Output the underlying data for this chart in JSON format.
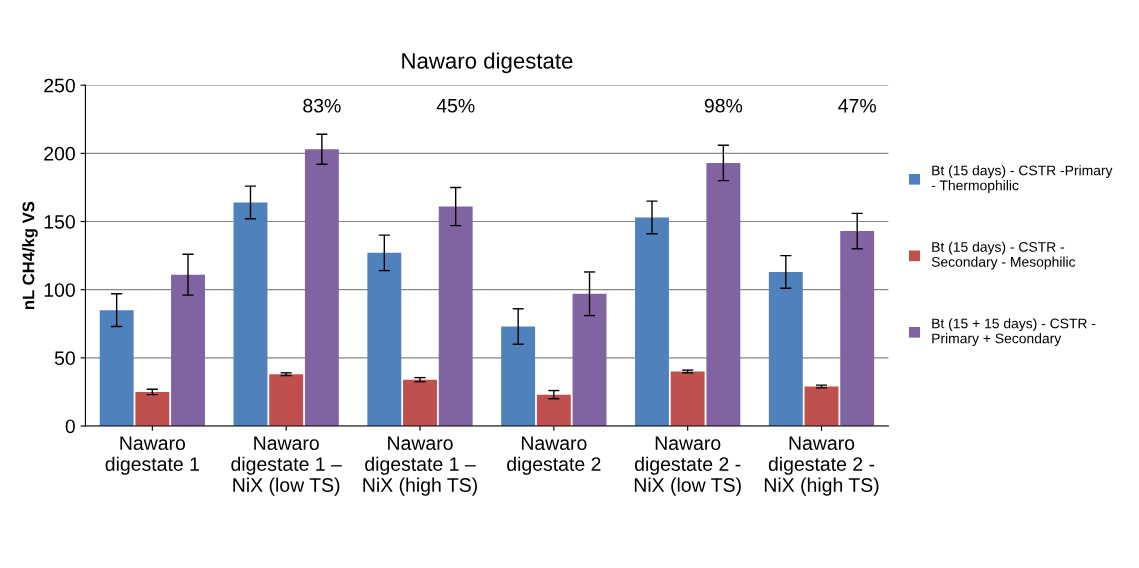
{
  "chart_data": {
    "type": "bar",
    "title": "Nawaro digestate",
    "ylabel": "nL CH4/kg VS",
    "categories": [
      "Nawaro\ndigestate 1",
      "Nawaro\ndigestate 1 –\nNiX (low TS)",
      "Nawaro\ndigestate 1 –\nNiX (high TS)",
      "Nawaro\ndigestate 2",
      "Nawaro\ndigestate 2 -\nNiX (low TS)",
      "Nawaro\ndigestate 2 -\nNiX (high TS)"
    ],
    "series": [
      {
        "name": "Bt (15 days) - CSTR -Primary\n- Thermophilic",
        "color": "#4f81bd",
        "values": [
          85,
          164,
          127,
          73,
          153,
          113
        ],
        "errors": [
          12,
          12,
          13,
          13,
          12,
          12
        ]
      },
      {
        "name": "Bt (15 days) - CSTR -\nSecondary - Mesophilic",
        "color": "#c0504d",
        "values": [
          25,
          38,
          34,
          23,
          40,
          29
        ],
        "errors": [
          2,
          1,
          1.5,
          3,
          1,
          1
        ]
      },
      {
        "name": "Bt (15 + 15 days) - CSTR -\nPrimary + Secondary",
        "color": "#8064a2",
        "values": [
          111,
          203,
          161,
          97,
          193,
          143
        ],
        "errors": [
          15,
          11,
          14,
          16,
          13,
          13
        ]
      }
    ],
    "annotations": [
      "83%",
      "45%",
      "98%",
      "47%"
    ],
    "ylim": [
      0,
      250
    ],
    "yticks": [
      0,
      50,
      100,
      150,
      200,
      250
    ],
    "grid": "y",
    "legend": "right"
  }
}
